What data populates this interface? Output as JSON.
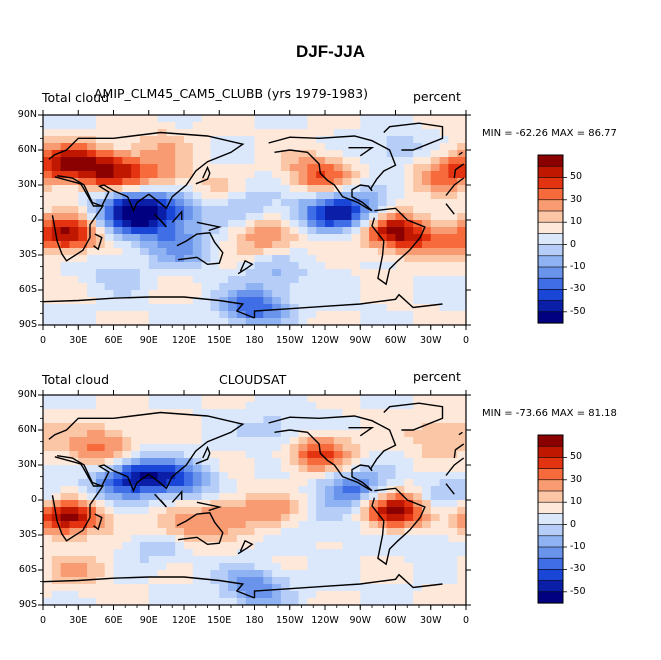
{
  "figure": {
    "title": "DJF-JJA"
  },
  "panels": [
    {
      "left_title": "Total cloud",
      "center_title": "AMIP_CLM45_CAM5_CLUBB (yrs 1979-1983)",
      "right_title": "percent",
      "stats": "MIN = -62.26 MAX =  86.77",
      "field": [
        {
          "lon": 15,
          "lat": 50,
          "v": 40
        },
        {
          "lon": 45,
          "lat": 45,
          "v": 50
        },
        {
          "lon": 75,
          "lat": 40,
          "v": 30
        },
        {
          "lon": 105,
          "lat": 35,
          "v": 20
        },
        {
          "lon": 85,
          "lat": 15,
          "v": -40
        },
        {
          "lon": 70,
          "lat": 5,
          "v": -45
        },
        {
          "lon": 95,
          "lat": -5,
          "v": -35
        },
        {
          "lon": 20,
          "lat": -12,
          "v": 60
        },
        {
          "lon": 120,
          "lat": 10,
          "v": -30
        },
        {
          "lon": 150,
          "lat": 20,
          "v": 20
        },
        {
          "lon": 170,
          "lat": 15,
          "v": -25
        },
        {
          "lon": 190,
          "lat": -15,
          "v": 30
        },
        {
          "lon": 240,
          "lat": 5,
          "v": -45
        },
        {
          "lon": 235,
          "lat": 40,
          "v": 40
        },
        {
          "lon": 265,
          "lat": 10,
          "v": -40
        },
        {
          "lon": 300,
          "lat": -10,
          "v": 60
        },
        {
          "lon": 200,
          "lat": -45,
          "v": -20
        },
        {
          "lon": 60,
          "lat": -45,
          "v": -15
        },
        {
          "lon": 180,
          "lat": -75,
          "v": -50
        },
        {
          "lon": 300,
          "lat": 60,
          "v": -20
        },
        {
          "lon": 340,
          "lat": 40,
          "v": 30
        },
        {
          "lon": 120,
          "lat": -25,
          "v": -30
        },
        {
          "lon": 330,
          "lat": -20,
          "v": 20
        },
        {
          "lon": 100,
          "lat": 65,
          "v": 15
        }
      ]
    },
    {
      "left_title": "Total cloud",
      "center_title": "CLOUDSAT",
      "right_title": "percent",
      "stats": "MIN = -73.66 MAX =  81.18",
      "field": [
        {
          "lon": 20,
          "lat": -15,
          "v": 65
        },
        {
          "lon": 300,
          "lat": -10,
          "v": 65
        },
        {
          "lon": 85,
          "lat": 22,
          "v": -55
        },
        {
          "lon": 120,
          "lat": 15,
          "v": -40
        },
        {
          "lon": 60,
          "lat": 15,
          "v": -30
        },
        {
          "lon": 45,
          "lat": 40,
          "v": 30
        },
        {
          "lon": 235,
          "lat": 40,
          "v": 45
        },
        {
          "lon": 265,
          "lat": 10,
          "v": -45
        },
        {
          "lon": 190,
          "lat": -10,
          "v": 25
        },
        {
          "lon": 150,
          "lat": -10,
          "v": 20
        },
        {
          "lon": 250,
          "lat": -20,
          "v": -15
        },
        {
          "lon": 180,
          "lat": -75,
          "v": -40
        },
        {
          "lon": 30,
          "lat": -60,
          "v": 20
        },
        {
          "lon": 200,
          "lat": 60,
          "v": -20
        },
        {
          "lon": 340,
          "lat": 55,
          "v": 25
        },
        {
          "lon": 100,
          "lat": -40,
          "v": -20
        },
        {
          "lon": 350,
          "lat": 5,
          "v": -20
        },
        {
          "lon": 120,
          "lat": -25,
          "v": 30
        },
        {
          "lon": 60,
          "lat": 55,
          "v": 15
        },
        {
          "lon": 330,
          "lat": -35,
          "v": -15
        }
      ]
    }
  ],
  "axes": {
    "lat_labels": [
      "90N",
      "60N",
      "30N",
      "0",
      "30S",
      "60S",
      "90S"
    ],
    "lon_labels": [
      "0",
      "30E",
      "60E",
      "90E",
      "120E",
      "150E",
      "180",
      "150W",
      "120W",
      "90W",
      "60W",
      "30W",
      "0"
    ]
  },
  "colorbar": {
    "labels": [
      "50",
      "30",
      "10",
      "0",
      "-10",
      "-30",
      "-50"
    ],
    "colors": [
      "#8b0000",
      "#c01800",
      "#e33310",
      "#f76a3c",
      "#f99b72",
      "#fbc6a6",
      "#fde8da",
      "#dbe8fb",
      "#b6cef7",
      "#8fb3f2",
      "#6a94ec",
      "#3f6ee6",
      "#1a46d8",
      "#0a1ea8",
      "#000080"
    ]
  },
  "landmasses": [
    [
      [
        -10,
        36
      ],
      [
        -9,
        43
      ],
      [
        -2,
        48
      ],
      [
        5,
        52
      ],
      [
        10,
        56
      ],
      [
        20,
        60
      ],
      [
        30,
        70
      ],
      [
        60,
        70
      ],
      [
        100,
        75
      ],
      [
        140,
        72
      ],
      [
        170,
        65
      ],
      [
        160,
        58
      ],
      [
        140,
        50
      ],
      [
        130,
        42
      ],
      [
        122,
        30
      ],
      [
        110,
        20
      ],
      [
        105,
        10
      ],
      [
        98,
        16
      ],
      [
        90,
        22
      ],
      [
        80,
        15
      ],
      [
        77,
        8
      ],
      [
        72,
        20
      ],
      [
        60,
        25
      ],
      [
        52,
        30
      ],
      [
        48,
        29
      ],
      [
        56,
        24
      ],
      [
        50,
        12
      ],
      [
        42,
        15
      ],
      [
        35,
        30
      ],
      [
        25,
        36
      ],
      [
        12,
        38
      ],
      [
        -5,
        36
      ]
    ],
    [
      [
        -17,
        21
      ],
      [
        -10,
        30
      ],
      [
        -2,
        36
      ],
      [
        10,
        37
      ],
      [
        32,
        31
      ],
      [
        34,
        28
      ],
      [
        43,
        12
      ],
      [
        51,
        12
      ],
      [
        40,
        -4
      ],
      [
        40,
        -15
      ],
      [
        34,
        -26
      ],
      [
        20,
        -35
      ],
      [
        16,
        -29
      ],
      [
        12,
        -18
      ],
      [
        9,
        -1
      ],
      [
        8,
        4
      ],
      [
        -10,
        5
      ],
      [
        -17,
        14
      ]
    ],
    [
      [
        114,
        -22
      ],
      [
        122,
        -18
      ],
      [
        131,
        -12
      ],
      [
        142,
        -11
      ],
      [
        146,
        -19
      ],
      [
        153,
        -28
      ],
      [
        150,
        -37
      ],
      [
        140,
        -38
      ],
      [
        131,
        -32
      ],
      [
        115,
        -34
      ]
    ],
    [
      [
        -168,
        66
      ],
      [
        -150,
        71
      ],
      [
        -125,
        70
      ],
      [
        -95,
        72
      ],
      [
        -80,
        68
      ],
      [
        -65,
        60
      ],
      [
        -60,
        47
      ],
      [
        -70,
        42
      ],
      [
        -76,
        35
      ],
      [
        -81,
        27
      ],
      [
        -80,
        25
      ],
      [
        -83,
        29
      ],
      [
        -90,
        30
      ],
      [
        -97,
        26
      ],
      [
        -97,
        20
      ],
      [
        -88,
        15
      ],
      [
        -80,
        8
      ],
      [
        -84,
        10
      ],
      [
        -92,
        15
      ],
      [
        -105,
        20
      ],
      [
        -112,
        30
      ],
      [
        -118,
        34
      ],
      [
        -124,
        40
      ],
      [
        -125,
        48
      ],
      [
        -135,
        58
      ],
      [
        -150,
        60
      ],
      [
        -163,
        58
      ]
    ],
    [
      [
        -78,
        8
      ],
      [
        -60,
        10
      ],
      [
        -50,
        0
      ],
      [
        -35,
        -6
      ],
      [
        -39,
        -15
      ],
      [
        -48,
        -26
      ],
      [
        -58,
        -35
      ],
      [
        -65,
        -42
      ],
      [
        -68,
        -55
      ],
      [
        -75,
        -50
      ],
      [
        -71,
        -30
      ],
      [
        -70,
        -18
      ],
      [
        -80,
        -5
      ],
      [
        -78,
        2
      ]
    ],
    [
      [
        -55,
        60
      ],
      [
        -45,
        60
      ],
      [
        -20,
        70
      ],
      [
        -20,
        80
      ],
      [
        -40,
        83
      ],
      [
        -65,
        80
      ],
      [
        -70,
        75
      ]
    ],
    [
      [
        -180,
        -84
      ],
      [
        -180,
        -78
      ],
      [
        -150,
        -76
      ],
      [
        -120,
        -74
      ],
      [
        -90,
        -72
      ],
      [
        -60,
        -68
      ],
      [
        -57,
        -64
      ],
      [
        -45,
        -75
      ],
      [
        -20,
        -72
      ],
      [
        0,
        -70
      ],
      [
        30,
        -69
      ],
      [
        60,
        -67
      ],
      [
        90,
        -66
      ],
      [
        120,
        -66
      ],
      [
        150,
        -69
      ],
      [
        170,
        -72
      ],
      [
        165,
        -78
      ],
      [
        180,
        -84
      ]
    ],
    [
      [
        95,
        5
      ],
      [
        105,
        -6
      ],
      [
        100,
        0
      ]
    ],
    [
      [
        110,
        -2
      ],
      [
        118,
        7
      ],
      [
        118,
        0
      ]
    ],
    [
      [
        131,
        -2
      ],
      [
        150,
        -6
      ],
      [
        141,
        -9
      ]
    ],
    [
      [
        130,
        31
      ],
      [
        140,
        35
      ],
      [
        142,
        40
      ],
      [
        140,
        45
      ],
      [
        136,
        36
      ]
    ],
    [
      [
        -5,
        50
      ],
      [
        0,
        53
      ],
      [
        -3,
        58
      ],
      [
        -6,
        56
      ]
    ],
    [
      [
        44,
        -12
      ],
      [
        50,
        -15
      ],
      [
        47,
        -25
      ],
      [
        43,
        -22
      ]
    ],
    [
      [
        166,
        -46
      ],
      [
        174,
        -41
      ],
      [
        178,
        -38
      ],
      [
        172,
        -35
      ],
      [
        168,
        -44
      ]
    ],
    [
      [
        -100,
        62
      ],
      [
        -80,
        62
      ],
      [
        -90,
        55
      ]
    ]
  ]
}
